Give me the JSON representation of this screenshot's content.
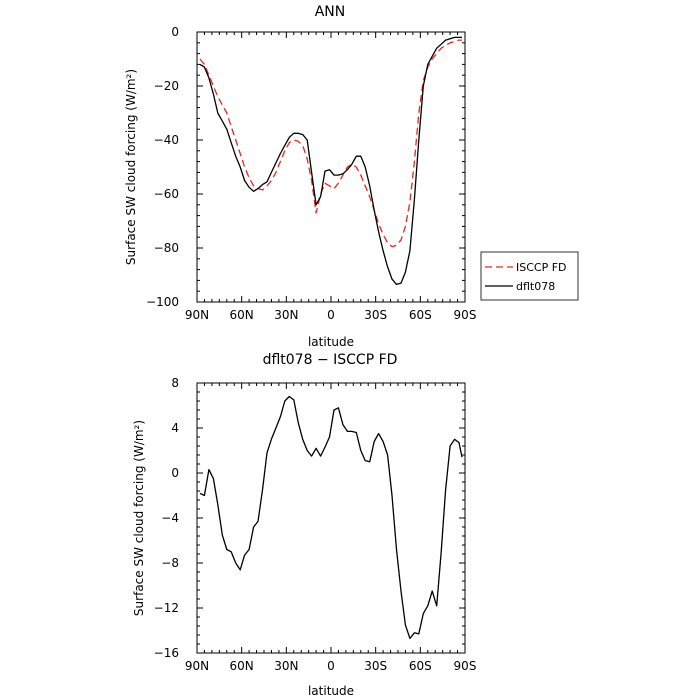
{
  "chart_data": [
    {
      "type": "line",
      "title": "ANN",
      "xlabel": "latitude",
      "ylabel": "Surface SW cloud forcing (W/m²)",
      "xlim": [
        90,
        -90
      ],
      "ylim": [
        -100,
        0
      ],
      "x_ticks": [
        {
          "value": 90,
          "label": "90N"
        },
        {
          "value": 60,
          "label": "60N"
        },
        {
          "value": 30,
          "label": "30N"
        },
        {
          "value": 0,
          "label": "0"
        },
        {
          "value": -30,
          "label": "30S"
        },
        {
          "value": -60,
          "label": "60S"
        },
        {
          "value": -90,
          "label": "90S"
        }
      ],
      "y_ticks": [
        {
          "value": 0,
          "label": "0"
        },
        {
          "value": -20,
          "label": "−20"
        },
        {
          "value": -40,
          "label": "−40"
        },
        {
          "value": -60,
          "label": "−60"
        },
        {
          "value": -80,
          "label": "−80"
        },
        {
          "value": -100,
          "label": "−100"
        }
      ],
      "legend": "right",
      "series": [
        {
          "name": "ISCCP FD",
          "color": "#e8261c",
          "dash": "dashed",
          "x": [
            88,
            85,
            82,
            79,
            76,
            73,
            70,
            67,
            64,
            61,
            58,
            55,
            52,
            49,
            46,
            43,
            40,
            37,
            34,
            31,
            28,
            25,
            22,
            19,
            16,
            13,
            10,
            7,
            4,
            1,
            -2,
            -5,
            -8,
            -11,
            -14,
            -17,
            -20,
            -23,
            -26,
            -29,
            -32,
            -35,
            -38,
            -41,
            -44,
            -47,
            -50,
            -53,
            -56,
            -59,
            -62,
            -65,
            -68,
            -71,
            -74,
            -77,
            -80,
            -83,
            -86,
            -88
          ],
          "y": [
            -10,
            -12,
            -16,
            -20,
            -24,
            -27,
            -30,
            -35,
            -40,
            -45,
            -50,
            -54,
            -57,
            -58,
            -58.5,
            -57,
            -55,
            -52,
            -48,
            -44,
            -41,
            -40,
            -40.5,
            -42,
            -47,
            -55,
            -67,
            -60,
            -56,
            -57,
            -58,
            -56,
            -53,
            -50,
            -49,
            -50,
            -53,
            -57,
            -61,
            -66,
            -71,
            -75,
            -78,
            -79.5,
            -79,
            -77,
            -72,
            -63,
            -48,
            -30,
            -18,
            -13,
            -10,
            -8,
            -6,
            -5,
            -4,
            -3.5,
            -3,
            -3
          ]
        },
        {
          "name": "dflt078",
          "color": "#000000",
          "dash": "solid",
          "x": [
            88,
            85,
            82,
            79,
            76,
            73,
            70,
            67,
            64,
            61,
            58,
            55,
            52,
            49,
            46,
            43,
            40,
            37,
            34,
            31,
            28,
            25,
            22,
            19,
            16,
            13,
            10,
            7,
            4,
            1,
            -2,
            -5,
            -8,
            -11,
            -14,
            -17,
            -20,
            -23,
            -26,
            -29,
            -32,
            -35,
            -38,
            -41,
            -44,
            -47,
            -50,
            -53,
            -56,
            -59,
            -62,
            -65,
            -68,
            -71,
            -74,
            -77,
            -80,
            -83,
            -86,
            -88
          ],
          "y": [
            -12,
            -13,
            -17,
            -23,
            -30,
            -33,
            -36,
            -41,
            -46,
            -50,
            -55,
            -57.5,
            -59,
            -58,
            -56.5,
            -55.5,
            -52,
            -48.5,
            -45,
            -42,
            -39,
            -37.5,
            -37.5,
            -38,
            -40,
            -52,
            -64,
            -61,
            -51.5,
            -51,
            -53,
            -53,
            -52.5,
            -51,
            -49,
            -46,
            -46,
            -50,
            -57,
            -66,
            -74,
            -81,
            -87,
            -91.5,
            -93.5,
            -93,
            -89,
            -81,
            -62,
            -40,
            -20,
            -12,
            -9,
            -6,
            -4.5,
            -3,
            -2.5,
            -2,
            -2,
            -2
          ]
        }
      ]
    },
    {
      "type": "line",
      "title": "dflt078 − ISCCP FD",
      "xlabel": "latitude",
      "ylabel": "Surface SW cloud forcing (W/m²)",
      "xlim": [
        90,
        -90
      ],
      "ylim": [
        -16,
        8
      ],
      "x_ticks": [
        {
          "value": 90,
          "label": "90N"
        },
        {
          "value": 60,
          "label": "60N"
        },
        {
          "value": 30,
          "label": "30N"
        },
        {
          "value": 0,
          "label": "0"
        },
        {
          "value": -30,
          "label": "30S"
        },
        {
          "value": -60,
          "label": "60S"
        },
        {
          "value": -90,
          "label": "90S"
        }
      ],
      "y_ticks": [
        {
          "value": 8,
          "label": "8"
        },
        {
          "value": 4,
          "label": "4"
        },
        {
          "value": 0,
          "label": "0"
        },
        {
          "value": -4,
          "label": "−4"
        },
        {
          "value": -8,
          "label": "−8"
        },
        {
          "value": -12,
          "label": "−12"
        },
        {
          "value": -16,
          "label": "−16"
        }
      ],
      "series": [
        {
          "color": "#000000",
          "dash": "solid",
          "x": [
            88,
            85,
            82,
            79,
            76,
            73,
            70,
            67,
            64,
            61,
            58,
            55,
            52,
            49,
            46,
            43,
            40,
            37,
            34,
            31,
            28,
            25,
            22,
            19,
            16,
            13,
            10,
            7,
            4,
            1,
            -2,
            -5,
            -8,
            -11,
            -14,
            -17,
            -20,
            -23,
            -26,
            -29,
            -32,
            -35,
            -38,
            -41,
            -44,
            -47,
            -50,
            -53,
            -56,
            -59,
            -62,
            -65,
            -68,
            -71,
            -74,
            -77,
            -80,
            -83,
            -86,
            -88
          ],
          "y": [
            -1.8,
            -2.0,
            0.3,
            -0.5,
            -2.8,
            -5.5,
            -6.8,
            -7.0,
            -8.0,
            -8.6,
            -7.3,
            -6.8,
            -4.8,
            -4.3,
            -1.5,
            1.8,
            3.0,
            4.0,
            5.0,
            6.4,
            6.8,
            6.5,
            4.5,
            3.0,
            2.0,
            1.5,
            2.2,
            1.5,
            2.3,
            3.2,
            5.6,
            5.8,
            4.3,
            3.7,
            3.7,
            3.6,
            2.0,
            1.1,
            1.0,
            2.8,
            3.5,
            2.8,
            1.6,
            -2.0,
            -6.8,
            -10.5,
            -13.5,
            -14.7,
            -14.2,
            -14.3,
            -12.5,
            -11.8,
            -10.5,
            -11.8,
            -7.0,
            -1.5,
            2.4,
            3.0,
            2.7,
            1.4
          ]
        }
      ]
    }
  ]
}
